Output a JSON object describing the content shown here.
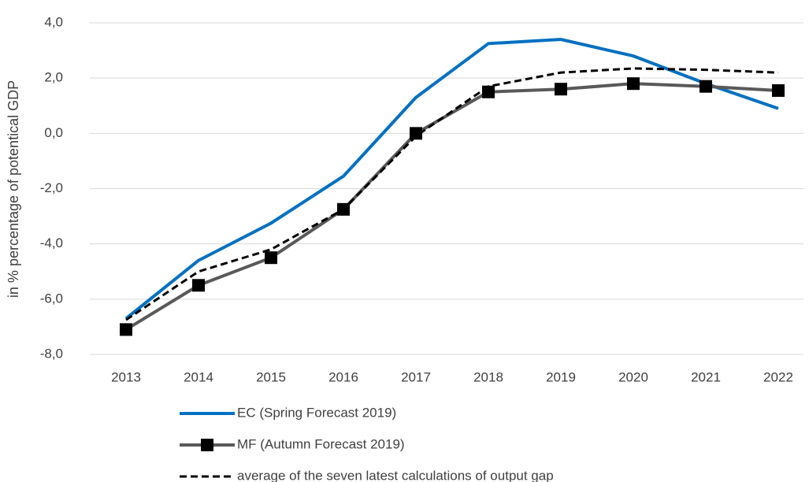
{
  "chart_data": {
    "type": "line",
    "y_label": "in % percentage of potentical GDP",
    "categories": [
      "2013",
      "2014",
      "2015",
      "2016",
      "2017",
      "2018",
      "2019",
      "2020",
      "2021",
      "2022"
    ],
    "series": [
      {
        "name": "EC (Spring Forecast 2019)",
        "color": "#0070c0",
        "dash": "solid",
        "marker": "none",
        "values": [
          -6.7,
          -4.6,
          -3.25,
          -1.55,
          1.3,
          3.25,
          3.4,
          2.8,
          1.8,
          0.9
        ]
      },
      {
        "name": "MF (Autumn Forecast 2019)",
        "color": "#595959",
        "dash": "solid",
        "marker": "square",
        "values": [
          -7.1,
          -5.5,
          -4.5,
          -2.75,
          0.0,
          1.5,
          1.6,
          1.8,
          1.7,
          1.55
        ]
      },
      {
        "name": "average of the seven latest calculations of output gap",
        "color": "#000000",
        "dash": "dashed",
        "marker": "none",
        "values": [
          -6.75,
          -5.0,
          -4.2,
          -2.75,
          -0.1,
          1.7,
          2.2,
          2.35,
          2.3,
          2.2
        ]
      }
    ],
    "ylim": [
      -8,
      4
    ],
    "yticks": [
      {
        "value": -8,
        "label": "-8,0"
      },
      {
        "value": -6,
        "label": "-6,0"
      },
      {
        "value": -4,
        "label": "-4,0"
      },
      {
        "value": -2,
        "label": "-2,0"
      },
      {
        "value": 0,
        "label": "0,0"
      },
      {
        "value": 2,
        "label": "2,0"
      },
      {
        "value": 4,
        "label": "4,0"
      }
    ],
    "grid": true,
    "legend": "bottom"
  }
}
